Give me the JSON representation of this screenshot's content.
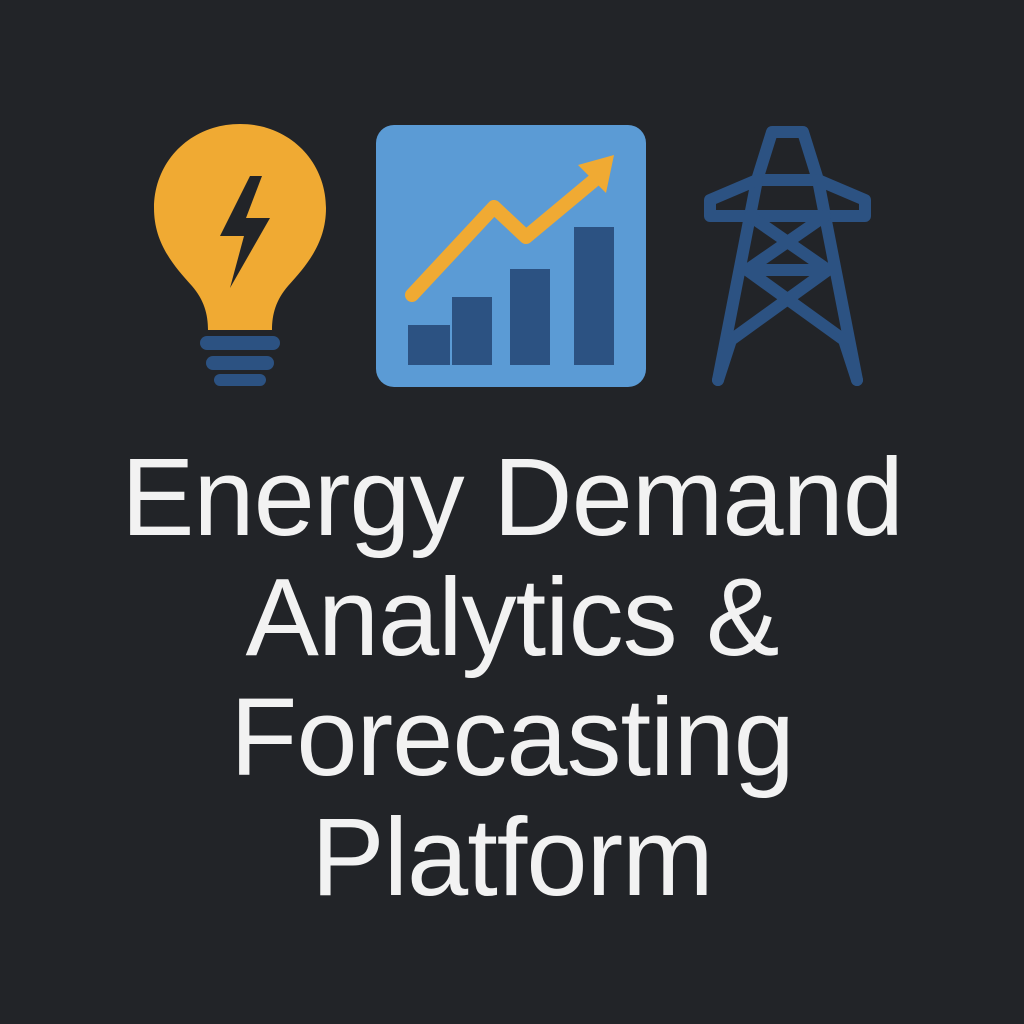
{
  "icons": [
    {
      "name": "lightbulb-icon",
      "color": "#f0aa33",
      "accent": "#2c5282"
    },
    {
      "name": "growth-chart-icon",
      "color": "#5b9bd5",
      "accent": "#f0aa33",
      "bars": "#2c5282"
    },
    {
      "name": "power-tower-icon",
      "color": "#2c5282"
    }
  ],
  "title": {
    "lines": [
      "Energy Demand",
      "Analytics &",
      "Forecasting",
      "Platform"
    ]
  },
  "colors": {
    "background": "#222428",
    "title": "#f2f2f2"
  }
}
